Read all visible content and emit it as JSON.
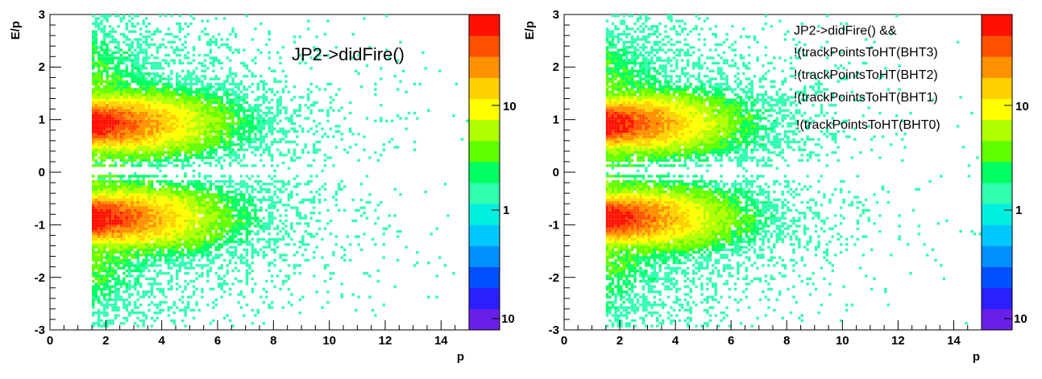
{
  "chart_data": [
    {
      "type": "heatmap",
      "xlabel": "p",
      "ylabel": "E/p",
      "xlim": [
        0,
        15
      ],
      "ylim": [
        -3,
        3
      ],
      "x_ticks": [
        "0",
        "2",
        "4",
        "6",
        "8",
        "10",
        "12",
        "14"
      ],
      "y_ticks": [
        "-3",
        "-2",
        "-1",
        "0",
        "1",
        "2",
        "3"
      ],
      "colorbar": {
        "scale": "log",
        "labels": [
          "10",
          "1",
          "10"
        ]
      },
      "annotation": [
        "JP2->didFire()"
      ],
      "data_description": "2D histogram of E/p vs p; dense bands near E/p = +1 and -1 for p between 1.5 and 3, spreading out and thinning toward p = 15; gap near E/p = 0 and around ±0.2."
    },
    {
      "type": "heatmap",
      "xlabel": "p",
      "ylabel": "E/p",
      "xlim": [
        0,
        15
      ],
      "ylim": [
        -3,
        3
      ],
      "x_ticks": [
        "0",
        "2",
        "4",
        "6",
        "8",
        "10",
        "12",
        "14"
      ],
      "y_ticks": [
        "-3",
        "-2",
        "-1",
        "0",
        "1",
        "2",
        "3"
      ],
      "colorbar": {
        "scale": "log",
        "labels": [
          "10",
          "1",
          "10"
        ]
      },
      "annotation": [
        "JP2->didFire() &&",
        "!(trackPointsToHT(BHT3)",
        "!(trackPointsToHT(BHT2)",
        "!(trackPointsToHT(BHT1)",
        "!(trackPointsToHT(BHT0)"
      ]
    }
  ],
  "colors": {
    "palette": [
      "#6a1fe8",
      "#2a1fff",
      "#0050ff",
      "#0090ff",
      "#00c8ff",
      "#00f0e0",
      "#30ffb0",
      "#00ff60",
      "#60ff00",
      "#b0ff00",
      "#ffff00",
      "#ffd000",
      "#ff9000",
      "#ff5000",
      "#ff1000"
    ]
  }
}
